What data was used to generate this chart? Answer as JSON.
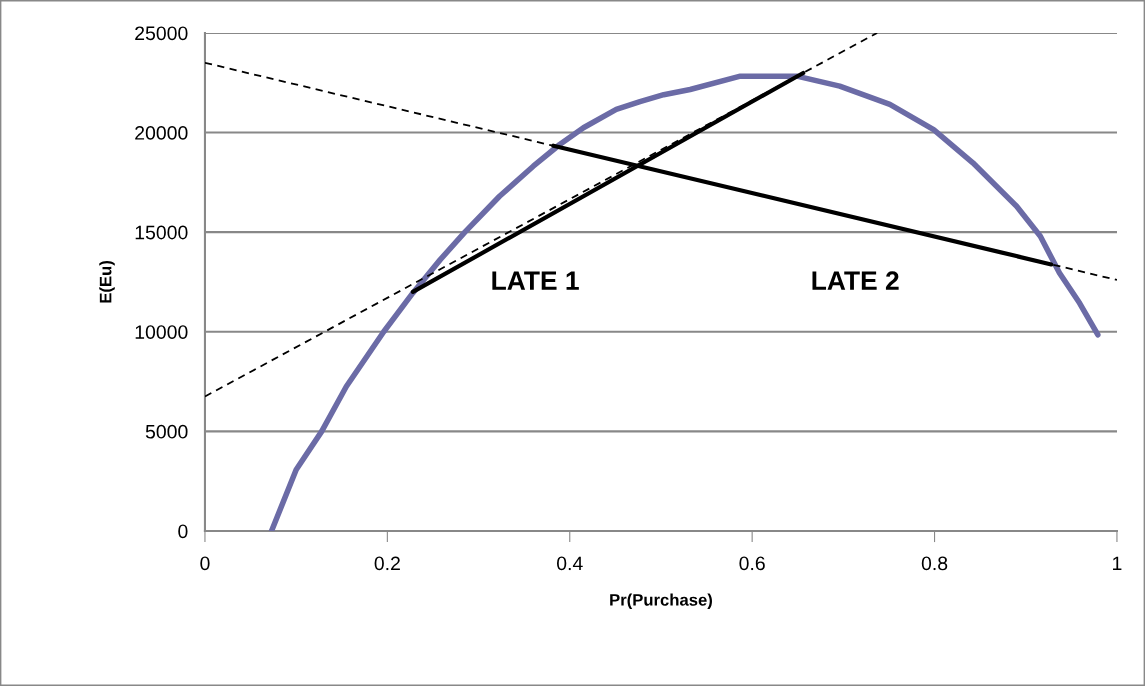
{
  "chart_data": {
    "type": "line",
    "xlabel": "Pr(Purchase)",
    "ylabel": "E(Eu)",
    "xlim": [
      0,
      1
    ],
    "xticks": [
      0,
      0.2,
      0.4,
      0.6,
      0.8,
      1
    ],
    "ylim": [
      0,
      25000
    ],
    "yticks": [
      0,
      5000,
      10000,
      15000,
      20000,
      25000
    ],
    "grid": "y",
    "marker": "none",
    "series": [
      {
        "color": "#6b6ba6",
        "line_style": "solid",
        "x": [
          0.073,
          0.1,
          0.128,
          0.155,
          0.196,
          0.228,
          0.258,
          0.285,
          0.323,
          0.36,
          0.389,
          0.415,
          0.451,
          0.477,
          0.503,
          0.532,
          0.587,
          0.649,
          0.696,
          0.751,
          0.799,
          0.842,
          0.89,
          0.916,
          0.937,
          0.959,
          0.979
        ],
        "values": [
          0,
          3070,
          5000,
          7250,
          10000,
          11950,
          13620,
          15000,
          16800,
          18310,
          19400,
          20240,
          21160,
          21550,
          21900,
          22160,
          22830,
          22830,
          22330,
          21410,
          20150,
          18480,
          16300,
          14790,
          12950,
          11440,
          9850
        ]
      },
      {
        "color": "#000000",
        "line_style": "dashed",
        "x": [
          0,
          0.737
        ],
        "values": [
          6750,
          25000
        ]
      },
      {
        "color": "#000000",
        "line_style": "dashed",
        "x": [
          0,
          1
        ],
        "values": [
          23500,
          12600
        ]
      },
      {
        "color": "#000000",
        "line_style": "solid",
        "x": [
          0.228,
          0.656
        ],
        "values": [
          12000,
          22990
        ]
      },
      {
        "color": "#000000",
        "line_style": "solid",
        "x": [
          0.382,
          0.928
        ],
        "values": [
          19340,
          13380
        ]
      }
    ],
    "annotations": [
      "LATE 1",
      "LATE 2"
    ]
  }
}
